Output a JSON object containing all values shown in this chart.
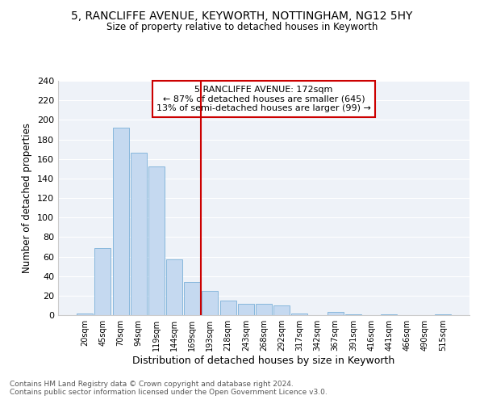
{
  "title1": "5, RANCLIFFE AVENUE, KEYWORTH, NOTTINGHAM, NG12 5HY",
  "title2": "Size of property relative to detached houses in Keyworth",
  "xlabel": "Distribution of detached houses by size in Keyworth",
  "ylabel": "Number of detached properties",
  "bar_color": "#c5d9f0",
  "bar_edgecolor": "#7ab0d8",
  "vline_color": "#cc0000",
  "annotation_lines": [
    "5 RANCLIFFE AVENUE: 172sqm",
    "← 87% of detached houses are smaller (645)",
    "13% of semi-detached houses are larger (99) →"
  ],
  "categories": [
    "20sqm",
    "45sqm",
    "70sqm",
    "94sqm",
    "119sqm",
    "144sqm",
    "169sqm",
    "193sqm",
    "218sqm",
    "243sqm",
    "268sqm",
    "292sqm",
    "317sqm",
    "342sqm",
    "367sqm",
    "391sqm",
    "416sqm",
    "441sqm",
    "466sqm",
    "490sqm",
    "515sqm"
  ],
  "values": [
    2,
    69,
    192,
    166,
    152,
    57,
    34,
    25,
    15,
    12,
    12,
    10,
    2,
    0,
    3,
    1,
    0,
    1,
    0,
    0,
    1
  ],
  "ylim": [
    0,
    240
  ],
  "yticks": [
    0,
    20,
    40,
    60,
    80,
    100,
    120,
    140,
    160,
    180,
    200,
    220,
    240
  ],
  "vline_index": 6,
  "footer1": "Contains HM Land Registry data © Crown copyright and database right 2024.",
  "footer2": "Contains public sector information licensed under the Open Government Licence v3.0.",
  "bg_color": "#eef2f8"
}
